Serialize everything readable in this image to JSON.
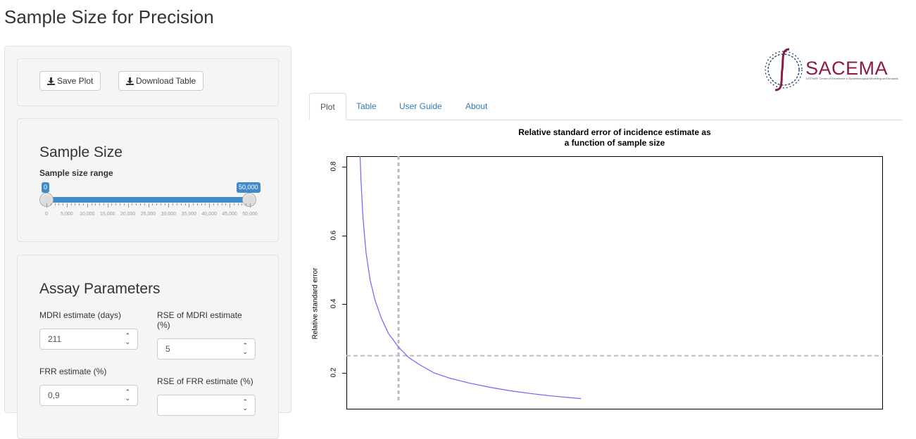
{
  "page": {
    "title": "Sample Size for Precision"
  },
  "toolbar": {
    "save_plot_label": "Save Plot",
    "download_table_label": "Download Table"
  },
  "sample_size": {
    "title": "Sample Size",
    "range_label": "Sample size range",
    "min_value": "0",
    "max_value": "50,000",
    "tick_labels": [
      "0",
      "5,000",
      "10,000",
      "15,000",
      "20,000",
      "25,000",
      "30,000",
      "35,000",
      "40,000",
      "45,000",
      "50,000"
    ]
  },
  "assay": {
    "title": "Assay Parameters",
    "mdri_label": "MDRI estimate (days)",
    "mdri_value": "211",
    "rse_mdri_label": "RSE of MDRI estimate (%)",
    "rse_mdri_value": "5",
    "frr_label": "FRR estimate (%)",
    "frr_value": "0,9",
    "rse_frr_label": "RSE of FRR estimate (%)"
  },
  "logo": {
    "name": "SACEMA",
    "tagline": "DST/NRF Centre of Excellence in Epidemiological Modelling and Analysis"
  },
  "tabs": [
    {
      "label": "Plot",
      "active": true
    },
    {
      "label": "Table",
      "active": false
    },
    {
      "label": "User Guide",
      "active": false
    },
    {
      "label": "About",
      "active": false
    }
  ],
  "colors": {
    "accent": "#428bca",
    "curve": "#6666ff",
    "link": "#337ab7",
    "logo": "#8b1a4a"
  },
  "chart_data": {
    "type": "line",
    "title": "Relative standard error of incidence estimate as a function of sample size",
    "title_lines": [
      "Relative standard error of incidence estimate as",
      "a function of sample size"
    ],
    "xlabel": "",
    "ylabel": "Relative standard error",
    "yticks": [
      "0.2",
      "0.4",
      "0.6",
      "0.8"
    ],
    "ylim": [
      0.08,
      0.83
    ],
    "xlim": [
      0,
      50000
    ],
    "series": [
      {
        "x": [
          1200,
          1300,
          1500,
          1800,
          2200,
          2700,
          3300,
          4000,
          5000,
          6000,
          7000,
          8500,
          10000,
          12000,
          14000,
          16000,
          18000,
          20000,
          23000
        ],
        "y": [
          0.84,
          0.76,
          0.65,
          0.55,
          0.47,
          0.41,
          0.36,
          0.315,
          0.275,
          0.245,
          0.225,
          0.2,
          0.185,
          0.17,
          0.158,
          0.148,
          0.14,
          0.133,
          0.125
        ]
      }
    ],
    "reference_lines": {
      "vertical_x": 5000,
      "horizontal_y": 0.25
    },
    "grid": false
  }
}
